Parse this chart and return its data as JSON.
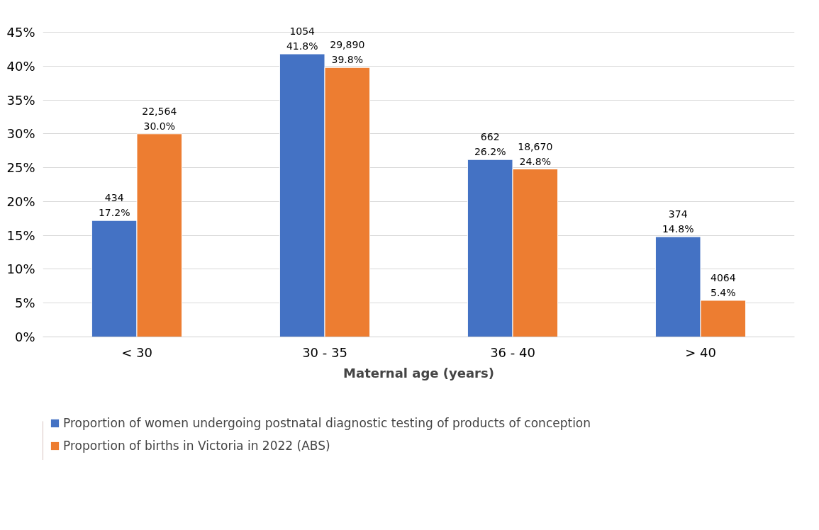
{
  "chart_data": {
    "type": "bar",
    "xlabel": "Maternal age (years)",
    "categories": [
      "< 30",
      "30 - 35",
      "36 - 40",
      "> 40"
    ],
    "series": [
      {
        "name": "Proportion of women undergoing postnatal diagnostic testing of products of conception",
        "color": "#4472c4",
        "values": [
          17.2,
          41.8,
          26.2,
          14.8
        ],
        "value_labels": [
          "434\n17.2%",
          "1054\n41.8%",
          "662\n26.2%",
          "374\n14.8%"
        ]
      },
      {
        "name": "Proportion of births in Victoria in 2022 (ABS)",
        "color": "#ed7d31",
        "values": [
          30.0,
          39.8,
          24.8,
          5.4
        ],
        "value_labels": [
          "22,564\n30.0%",
          "29,890\n39.8%",
          "18,670\n24.8%",
          "4064\n5.4%"
        ]
      }
    ],
    "ylim": [
      0,
      45
    ],
    "yticks": [
      {
        "value": 0,
        "label": "0%"
      },
      {
        "value": 5,
        "label": "5%"
      },
      {
        "value": 10,
        "label": "10%"
      },
      {
        "value": 15,
        "label": "15%"
      },
      {
        "value": 20,
        "label": "20%"
      },
      {
        "value": 25,
        "label": "25%"
      },
      {
        "value": 30,
        "label": "30%"
      },
      {
        "value": 35,
        "label": "35%"
      },
      {
        "value": 40,
        "label": "40%"
      },
      {
        "value": 45,
        "label": "45%"
      }
    ],
    "grid": "y",
    "legend": "bottom"
  }
}
